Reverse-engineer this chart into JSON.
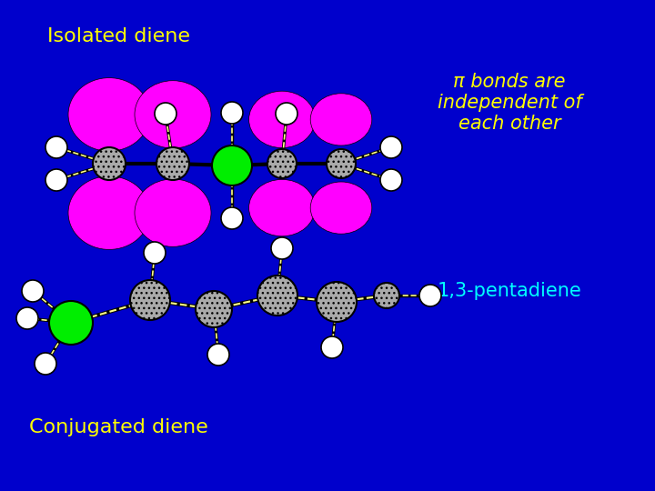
{
  "bg_color": "#0000CC",
  "title_top": "Isolated diene",
  "title_bottom_left": "Conjugated diene",
  "text_right_top": "π bonds are\nindependent of\neach other",
  "text_right_bottom": "1,3-pentadiene",
  "text_color_yellow": "#FFFF00",
  "text_color_cyan": "#00FFFF",
  "magenta": "#FF00FF",
  "green_color": "#00EE00",
  "gray_color": "#AAAAAA",
  "white_color": "#FFFFFF",
  "black_color": "#000000",
  "bond_color": "#FFFF88"
}
